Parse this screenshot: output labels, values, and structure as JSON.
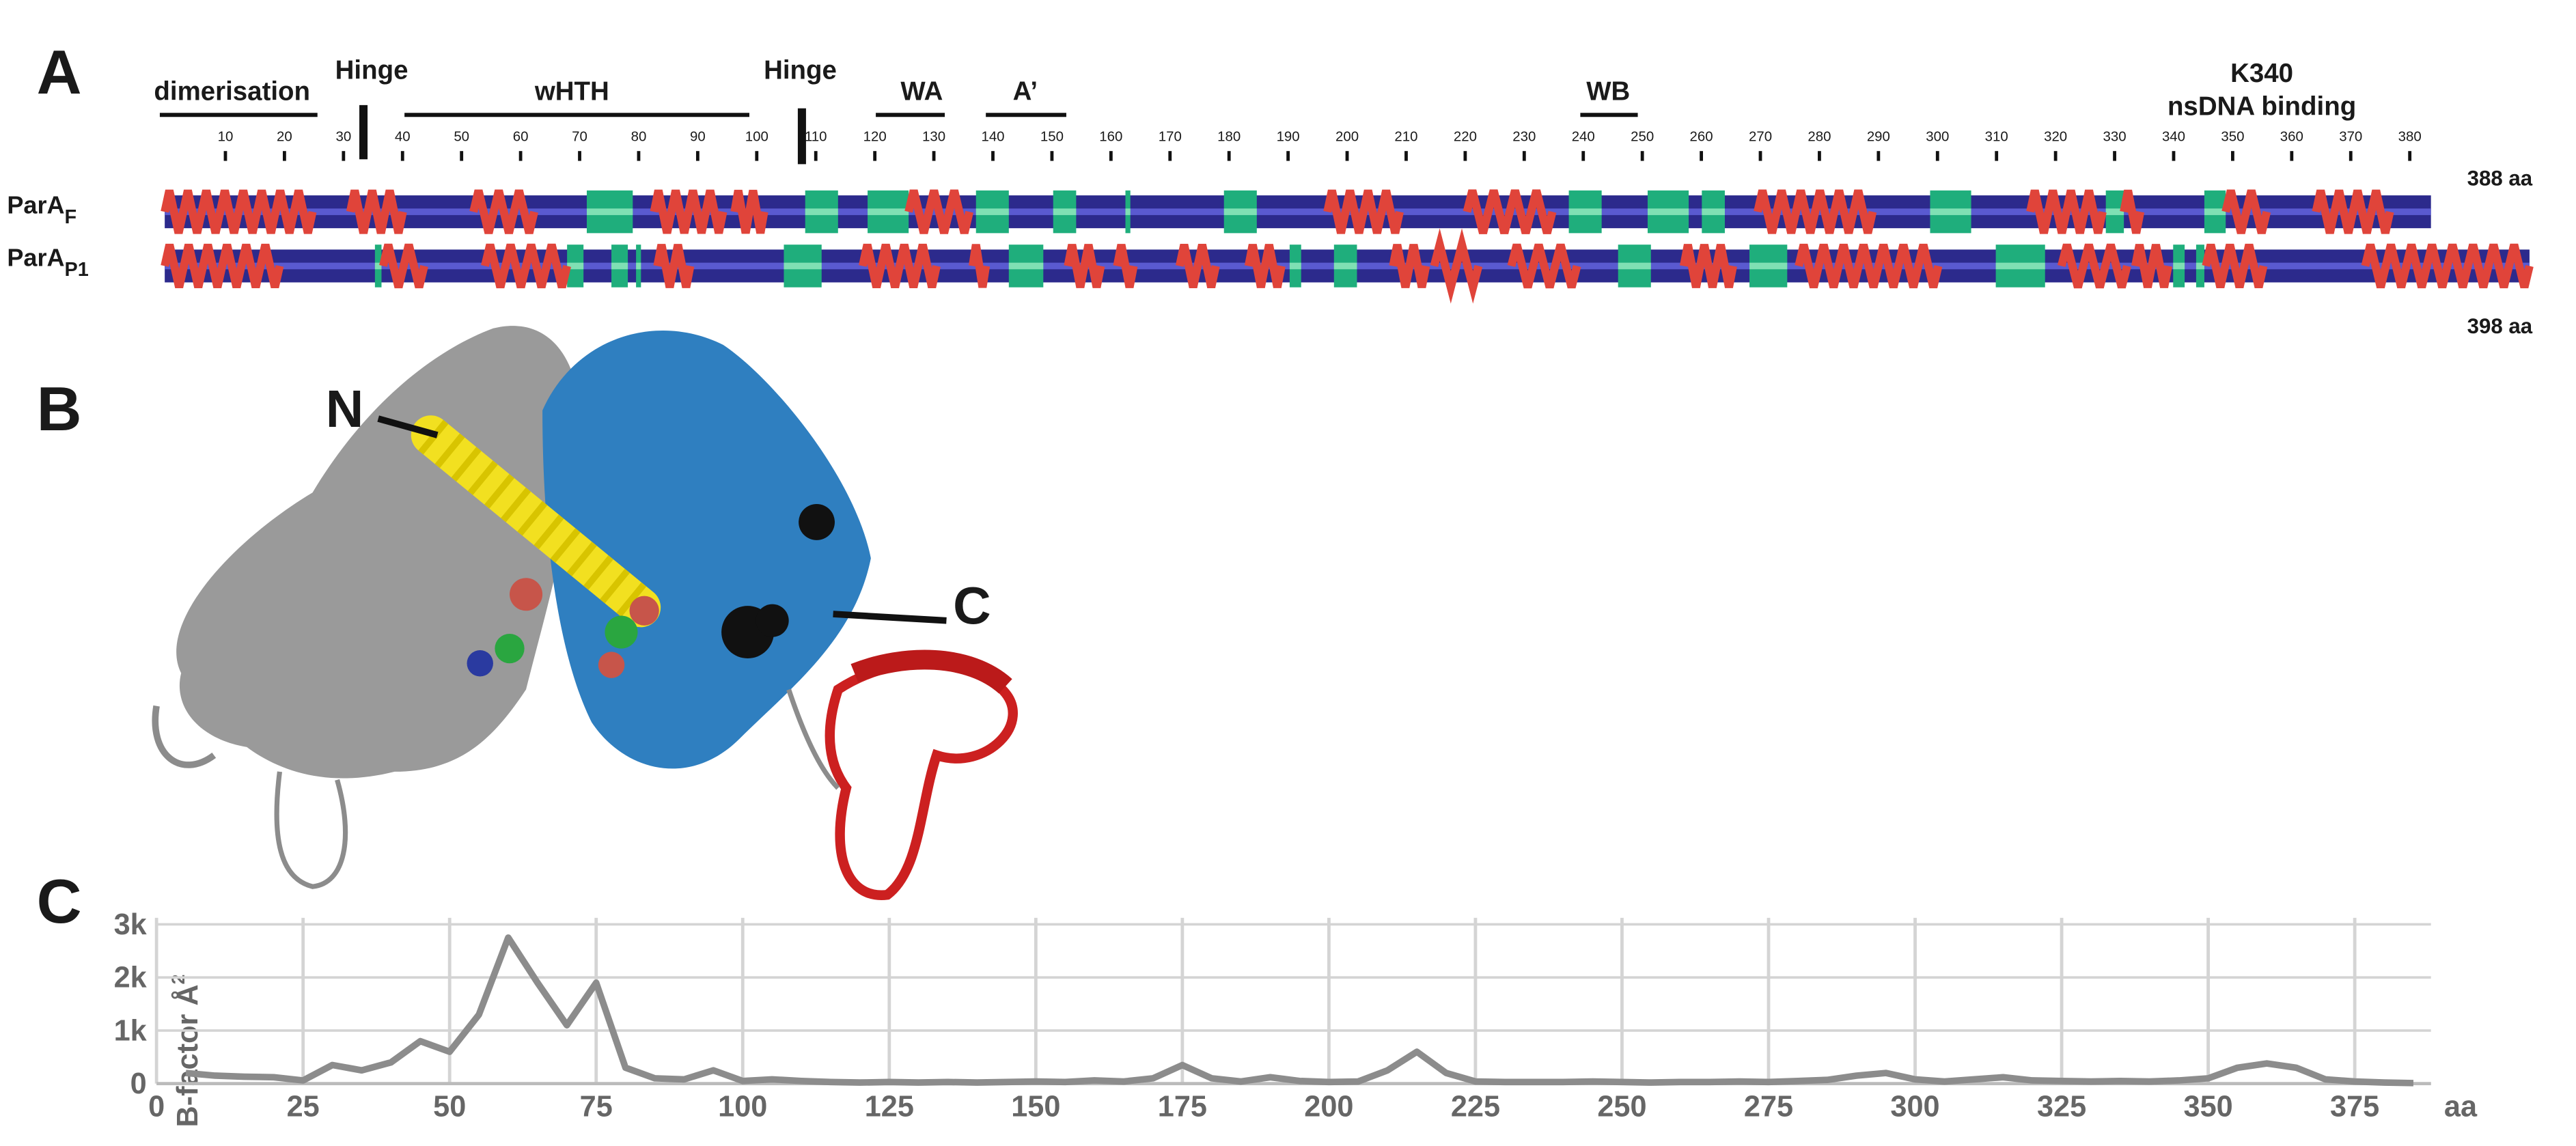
{
  "panels": {
    "a": "A",
    "b": "B",
    "c": "C"
  },
  "domain_labels": [
    "dimerisation",
    "Hinge",
    "wHTH",
    "Hinge",
    "WA",
    "A’",
    "WB",
    "K340",
    "nsDNA binding"
  ],
  "ruler_ticks": [
    10,
    20,
    30,
    40,
    50,
    60,
    70,
    80,
    90,
    100,
    110,
    120,
    130,
    140,
    150,
    160,
    170,
    180,
    190,
    200,
    210,
    220,
    230,
    240,
    250,
    260,
    270,
    280,
    290,
    300,
    310,
    320,
    330,
    340,
    350,
    360,
    370,
    380
  ],
  "proteins": [
    {
      "name": "ParA",
      "subscript": "F",
      "length_label": "388 aa"
    },
    {
      "name": "ParA",
      "subscript": "P1",
      "length_label": "398 aa"
    }
  ],
  "structure_labels": {
    "n": "N",
    "c": "C"
  },
  "chart_data": {
    "type": "line",
    "y_label": "B-factor Å",
    "y_label_sup": "2",
    "x_label": "aa",
    "x": [
      5,
      10,
      15,
      20,
      25,
      30,
      35,
      40,
      45,
      50,
      55,
      60,
      65,
      70,
      75,
      80,
      85,
      90,
      95,
      100,
      105,
      110,
      115,
      120,
      125,
      130,
      135,
      140,
      145,
      150,
      155,
      160,
      165,
      170,
      175,
      180,
      185,
      190,
      195,
      200,
      205,
      210,
      215,
      220,
      225,
      230,
      235,
      240,
      245,
      250,
      255,
      260,
      265,
      270,
      275,
      280,
      285,
      290,
      295,
      300,
      305,
      310,
      315,
      320,
      325,
      330,
      335,
      340,
      345,
      350,
      355,
      360,
      365,
      370,
      375,
      380,
      385
    ],
    "series": [
      {
        "name": "B-factor",
        "color": "#8c8c8c",
        "values": [
          200,
          150,
          130,
          120,
          60,
          350,
          250,
          400,
          800,
          600,
          1300,
          2750,
          1900,
          1100,
          1900,
          300,
          100,
          80,
          250,
          50,
          80,
          50,
          30,
          20,
          30,
          20,
          30,
          20,
          30,
          40,
          30,
          60,
          40,
          100,
          350,
          100,
          40,
          120,
          50,
          30,
          40,
          250,
          600,
          200,
          40,
          30,
          30,
          30,
          40,
          30,
          20,
          30,
          30,
          40,
          30,
          50,
          70,
          150,
          200,
          80,
          40,
          80,
          120,
          60,
          50,
          40,
          50,
          40,
          60,
          100,
          300,
          380,
          300,
          80,
          40,
          20,
          10
        ]
      }
    ],
    "xlim": [
      0,
      388
    ],
    "ylim": [
      0,
      3000
    ],
    "xticks": [
      0,
      25,
      50,
      75,
      100,
      125,
      150,
      175,
      200,
      225,
      250,
      275,
      300,
      325,
      350,
      375
    ],
    "yticks": [
      0,
      {
        "value": 1000,
        "label": "1k"
      },
      {
        "value": 2000,
        "label": "2k"
      },
      {
        "value": 3000,
        "label": "3k"
      }
    ],
    "grid": true
  }
}
